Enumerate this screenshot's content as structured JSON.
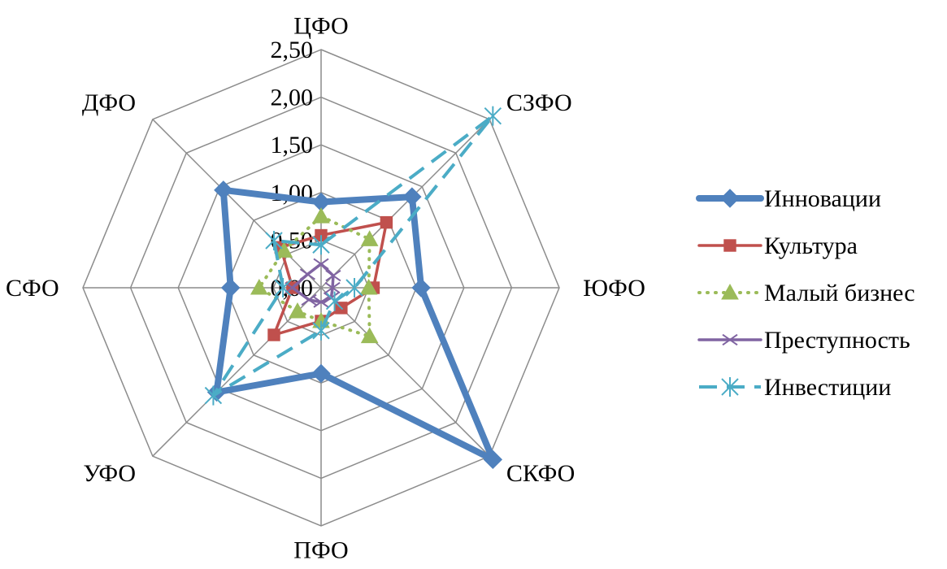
{
  "chart_data": {
    "type": "radar",
    "title": "",
    "categories": [
      "ЦФО",
      "СЗФО",
      "ЮФО",
      "СКФО",
      "ПФО",
      "УФО",
      "СФО",
      "ДФО"
    ],
    "radial_ticks": [
      "0,00",
      "0,50",
      "1,00",
      "1,50",
      "2,00",
      "2,50"
    ],
    "rlim": [
      0,
      2.5
    ],
    "grid": true,
    "legend_position": "right",
    "series": [
      {
        "name": "Инновации",
        "color": "#4F81BD",
        "marker": "diamond",
        "line": "solid",
        "values": [
          0.9,
          1.35,
          1.05,
          2.55,
          0.9,
          1.55,
          0.95,
          1.45
        ]
      },
      {
        "name": "Культура",
        "color": "#C0504D",
        "marker": "square",
        "line": "solid",
        "values": [
          0.55,
          0.97,
          0.55,
          0.3,
          0.35,
          0.7,
          0.3,
          0.6
        ]
      },
      {
        "name": "Малый бизнес",
        "color": "#9BBB59",
        "marker": "triangle",
        "line": "dotted",
        "values": [
          0.75,
          0.72,
          0.5,
          0.72,
          0.35,
          0.35,
          0.65,
          0.55
        ]
      },
      {
        "name": "Преступность",
        "color": "#8064A2",
        "marker": "x",
        "line": "solid",
        "values": [
          0.25,
          0.18,
          0.12,
          0.15,
          0.15,
          0.18,
          0.3,
          0.2
        ]
      },
      {
        "name": "Инвестиции",
        "color": "#4BACC6",
        "marker": "asterisk",
        "line": "dashed",
        "values": [
          0.45,
          2.55,
          0.35,
          0.2,
          0.45,
          1.6,
          0.4,
          0.7
        ]
      }
    ]
  }
}
